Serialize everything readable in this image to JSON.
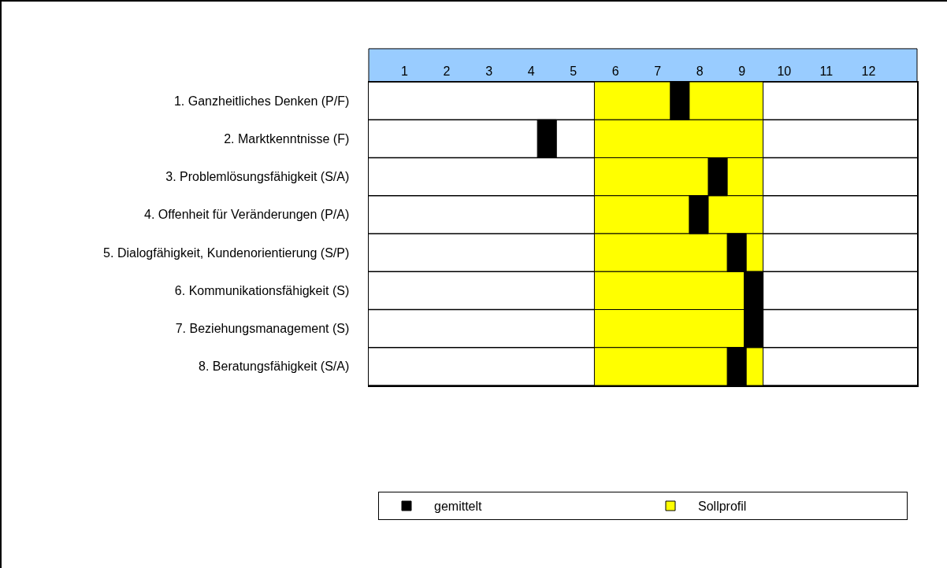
{
  "chart_data": {
    "type": "bar",
    "orientation": "horizontal",
    "stacked": false,
    "categories": [
      "1. Ganzheitliches Denken (P/F)",
      "2. Marktkenntnisse (F)",
      "3. Problemlösungsfähigkeit (S/A)",
      "4. Offenheit für Veränderungen (P/A)",
      "5. Dialogfähigkeit, Kundenorientierung (S/P)",
      "6. Kommunikationsfähigkeit (S)",
      "7. Beziehungsmanagement (S)",
      "8. Beratungsfähigkeit (S/A)"
    ],
    "series": [
      {
        "name": "Sollprofil",
        "color": "#ffff00",
        "base": [
          5.5,
          5.5,
          5.5,
          5.5,
          5.5,
          5.5,
          5.5,
          5.5
        ],
        "values": [
          4,
          4,
          4,
          4,
          4,
          4,
          4,
          4
        ]
      },
      {
        "name": "gemittelt",
        "color": "#000000",
        "base": [
          7.3,
          4.15,
          8.2,
          7.75,
          8.65,
          9.05,
          9.05,
          8.65
        ],
        "values": [
          0.45,
          0.45,
          0.45,
          0.45,
          0.45,
          0.45,
          0.45,
          0.45
        ]
      }
    ],
    "xlim": [
      0.15,
      13.15
    ],
    "xticks": [
      1,
      2,
      3,
      4,
      5,
      6,
      7,
      8,
      9,
      10,
      11,
      12
    ],
    "grid": false,
    "legend": "bottom"
  }
}
